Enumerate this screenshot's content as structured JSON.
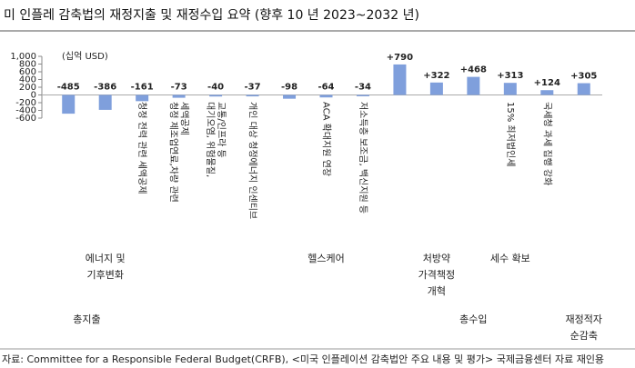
{
  "chart_data": {
    "type": "bar",
    "title": "미 인플레 감축법의 재정지출 및 재정수입 요약 (향후 10 년 2023~2032 년)",
    "unit_label": "(십억 USD)",
    "categories": [
      null,
      null,
      [
        "청정 전력 관련 세액공제"
      ],
      [
        "청정 제조업연료,차량 관련",
        "세액공제"
      ],
      [
        "대기오염, 위험물질,",
        "교통/인프라 등"
      ],
      [
        "개인 대상 청정에너지 인센티브"
      ],
      null,
      [
        "ACA 확대지원 연장"
      ],
      [
        "저소득층 보조금, 백신지원 등"
      ],
      null,
      null,
      null,
      [
        "15% 최저법인세"
      ],
      [
        "국세청 과세 집행 강화"
      ],
      null
    ],
    "values": [
      -485,
      -386,
      -161,
      -73,
      -40,
      -37,
      -98,
      -64,
      -34,
      790,
      322,
      468,
      313,
      124,
      305
    ],
    "value_labels": [
      "-485",
      "-386",
      "-161",
      "-73",
      "-40",
      "-37",
      "-98",
      "-64",
      "-34",
      "+790",
      "+322",
      "+468",
      "+313",
      "+124",
      "+305"
    ],
    "groups": [
      [
        "에너지 및",
        "기후변화"
      ],
      [
        "헬스케어"
      ],
      [
        "처방약",
        "가격책정",
        "개혁"
      ],
      [
        "세수 확보"
      ],
      [
        "총지출"
      ],
      [
        "총수입"
      ],
      [
        "재정적자",
        "순감축"
      ]
    ],
    "color": "#7f9fdc",
    "ylim": [
      -600,
      1000
    ],
    "yticks": [
      {
        "value": 1000,
        "label": "1,000"
      },
      800,
      600,
      400,
      200,
      0,
      -200,
      -400,
      -600
    ],
    "grid": false,
    "source": "자료: Committee for a Responsible Federal Budget(CRFB), <미국 인플레이션 감축법안 주요 내용 및 평가> 국제금융센터 자료 재인용"
  }
}
